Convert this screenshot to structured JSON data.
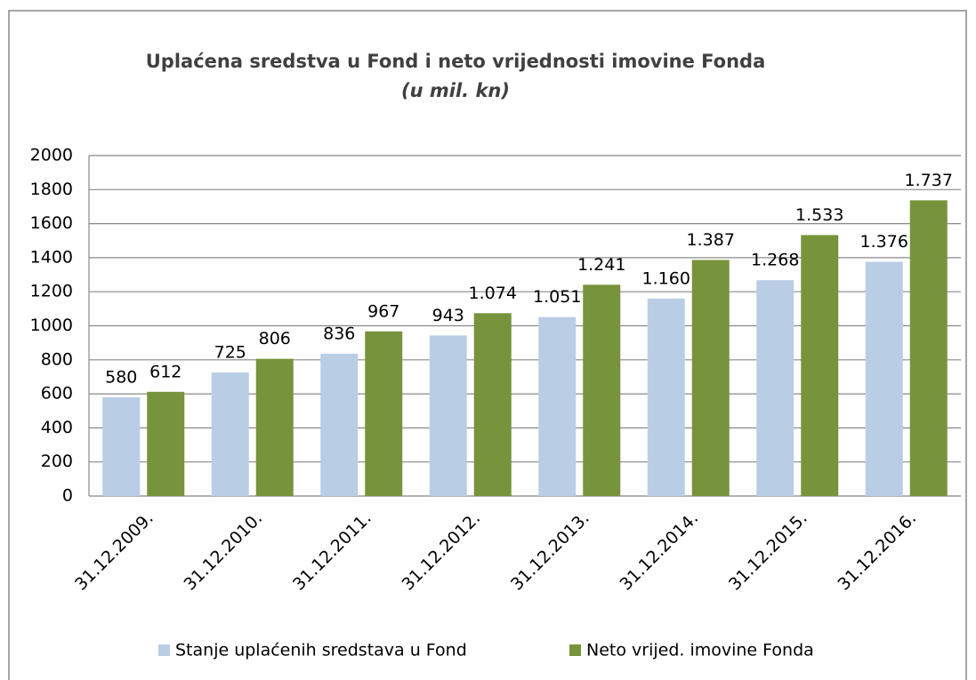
{
  "chart_data": {
    "type": "bar",
    "title": "Uplaćena sredstva u Fond i neto vrijednosti imovine Fonda",
    "subtitle": "(u mil. kn)",
    "categories": [
      "31.12.2009.",
      "31.12.2010.",
      "31.12.2011.",
      "31.12.2012.",
      "31.12.2013.",
      "31.12.2014.",
      "31.12.2015.",
      "31.12.2016."
    ],
    "series": [
      {
        "name": "Stanje uplaćenih sredstava u Fond",
        "color": "#b9cde5",
        "values": [
          580,
          725,
          836,
          943,
          1051,
          1160,
          1268,
          1376
        ],
        "value_labels": [
          "580",
          "725",
          "836",
          "943",
          "1.051",
          "1.160",
          "1.268",
          "1.376"
        ]
      },
      {
        "name": "Neto vrijed. imovine Fonda",
        "color": "#77933c",
        "values": [
          612,
          806,
          967,
          1074,
          1241,
          1387,
          1533,
          1737
        ],
        "value_labels": [
          "612",
          "806",
          "967",
          "1.074",
          "1.241",
          "1.387",
          "1.533",
          "1.737"
        ]
      }
    ],
    "ylim": [
      0,
      2000
    ],
    "yticks": [
      0,
      200,
      400,
      600,
      800,
      1000,
      1200,
      1400,
      1600,
      1800,
      2000
    ],
    "grid": true,
    "legend": "bottom"
  }
}
